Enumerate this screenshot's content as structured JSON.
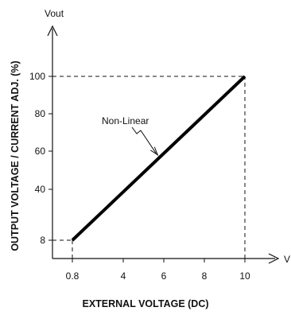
{
  "chart_data": {
    "type": "line",
    "xlabel": "EXTERNAL VOLTAGE (DC)",
    "ylabel": "OUTPUT VOLTAGE / CURRENT ADJ. (%)",
    "x_axis_end_label": "V",
    "y_axis_end_label": "Vout",
    "xlim": [
      0,
      12
    ],
    "ylim": [
      0,
      110
    ],
    "x_ticks": [
      {
        "value": 0.8,
        "label": "0.8"
      },
      {
        "value": 4,
        "label": "4"
      },
      {
        "value": 6,
        "label": "6"
      },
      {
        "value": 8,
        "label": "8"
      },
      {
        "value": 10,
        "label": "10"
      }
    ],
    "y_ticks": [
      {
        "value": 8,
        "label": "8"
      },
      {
        "value": 40,
        "label": "40"
      },
      {
        "value": 60,
        "label": "60"
      },
      {
        "value": 80,
        "label": "80"
      },
      {
        "value": 100,
        "label": "100"
      }
    ],
    "series": [
      {
        "x": [
          0.8,
          10
        ],
        "y": [
          8,
          100
        ],
        "color": "#000000"
      }
    ],
    "reference_lines": [
      {
        "from": [
          0,
          100
        ],
        "to": [
          10,
          100
        ],
        "style": "dashed"
      },
      {
        "from": [
          10,
          0
        ],
        "to": [
          10,
          100
        ],
        "style": "dashed"
      },
      {
        "from": [
          0,
          8
        ],
        "to": [
          0.8,
          8
        ],
        "style": "dashed"
      },
      {
        "from": [
          0.8,
          0
        ],
        "to": [
          0.8,
          8
        ],
        "style": "dashed"
      }
    ],
    "annotation": {
      "text": "Non-Linear",
      "points_to": [
        5.7,
        58
      ]
    },
    "grid": false
  }
}
